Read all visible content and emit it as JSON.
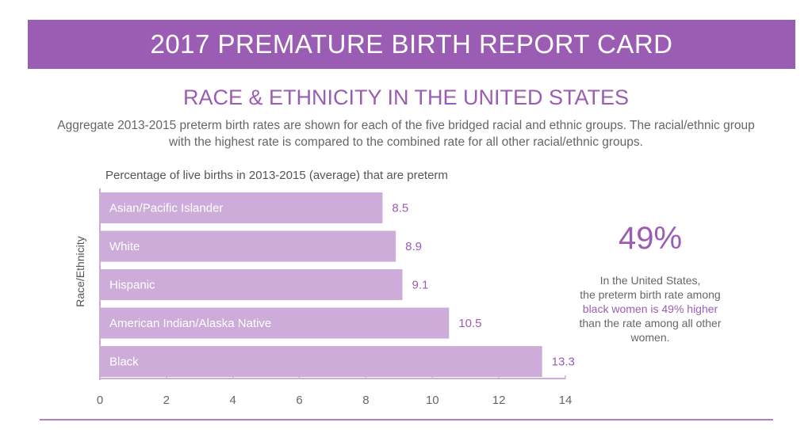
{
  "header": {
    "title": "2017 PREMATURE BIRTH REPORT CARD",
    "subtitle": "RACE & ETHNICITY IN THE UNITED STATES",
    "description": "Aggregate  2013-2015 preterm birth rates are shown for each of the five bridged racial and ethnic groups.  The racial/ethnic group with the highest rate is compared to the combined rate for all other racial/ethnic groups."
  },
  "chart_data": {
    "type": "bar",
    "orientation": "horizontal",
    "title": "Percentage of live births in 2013-2015 (average) that are preterm",
    "ylabel": "Race/Ethnicity",
    "xlabel": "",
    "categories": [
      "Asian/Pacific Islander",
      "White",
      "Hispanic",
      "American Indian/Alaska  Native",
      "Black"
    ],
    "values": [
      8.5,
      8.9,
      9.1,
      10.5,
      13.3
    ],
    "value_labels": [
      "8.5",
      "8.9",
      "9.1",
      "10.5",
      "13.3"
    ],
    "xlim": [
      0,
      14
    ],
    "xticks": [
      "0",
      "2",
      "4",
      "6",
      "8",
      "10",
      "12",
      "14"
    ],
    "grid": false,
    "colors": {
      "bar": "#cdacd9",
      "value_label": "#9b5db3",
      "axis": "#cdacd9"
    }
  },
  "callout": {
    "stat": "49%",
    "line1": "In the United States,",
    "line2": "the preterm birth rate among",
    "highlight": "black women is 49% higher",
    "line3": "than the rate among all other women."
  },
  "colors": {
    "accent": "#9b5db3"
  }
}
